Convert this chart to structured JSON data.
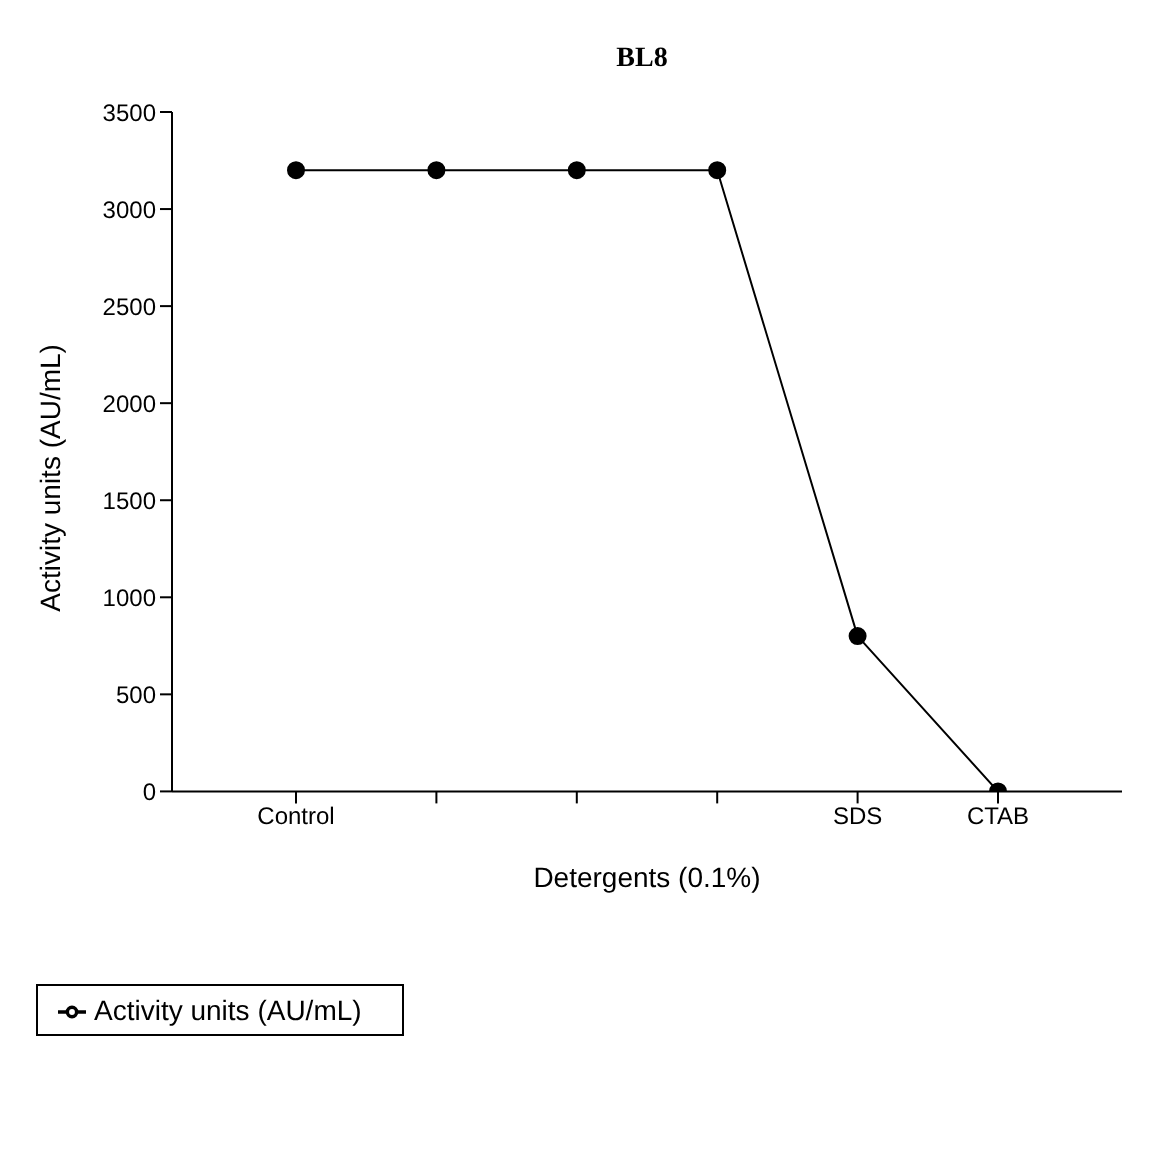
{
  "chart_data": {
    "type": "line",
    "title": "BL8",
    "xlabel": "Detergents (0.1%)",
    "ylabel": "Activity units (AU/mL)",
    "categories": [
      "Control",
      null,
      null,
      null,
      "SDS",
      "CTAB"
    ],
    "series": [
      {
        "name": "Activity units (AU/mL)",
        "color": "#000000",
        "values": [
          3200,
          3200,
          3200,
          3200,
          800,
          0
        ]
      }
    ],
    "ylim": [
      0,
      3500
    ],
    "yticks": [
      0,
      500,
      1000,
      1500,
      2000,
      2500,
      3000,
      3500
    ],
    "grid": false,
    "legend": "bottom left",
    "marker": "circle",
    "line_style": "solid"
  }
}
